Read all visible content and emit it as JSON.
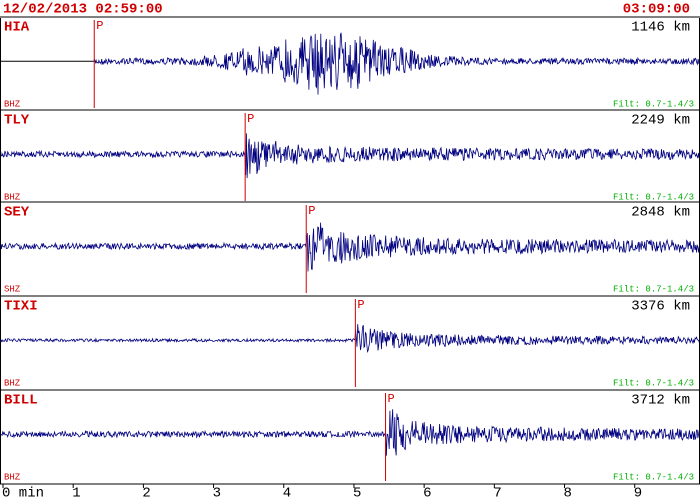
{
  "header": {
    "start_time": "12/02/2013 02:59:00",
    "end_time": "03:09:00"
  },
  "time_axis": {
    "xlim": [
      0,
      9.93
    ],
    "ticks": [
      {
        "value": 0,
        "label": "0 min"
      },
      1,
      2,
      3,
      4,
      5,
      6,
      7,
      8,
      9
    ]
  },
  "traces": [
    {
      "station": "HIA",
      "distance": "1146 km",
      "channel": "BHZ",
      "filter": "Filt: 0.7-1.4/3",
      "phase": "P",
      "p_arrival": 1.3
    },
    {
      "station": "TLY",
      "distance": "2249 km",
      "channel": "BHZ",
      "filter": "Filt: 0.7-1.4/3",
      "phase": "P",
      "p_arrival": 3.45
    },
    {
      "station": "SEY",
      "distance": "2848 km",
      "channel": "SHZ",
      "filter": "Filt: 0.7-1.4/3",
      "phase": "P",
      "p_arrival": 4.32
    },
    {
      "station": "TIXI",
      "distance": "3376 km",
      "channel": "BHZ",
      "filter": "Filt: 0.7-1.4/3",
      "phase": "P",
      "p_arrival": 5.02
    },
    {
      "station": "BILL",
      "distance": "3712 km",
      "channel": "BHZ",
      "filter": "Filt: 0.7-1.4/3",
      "phase": "P",
      "p_arrival": 5.45
    }
  ]
}
